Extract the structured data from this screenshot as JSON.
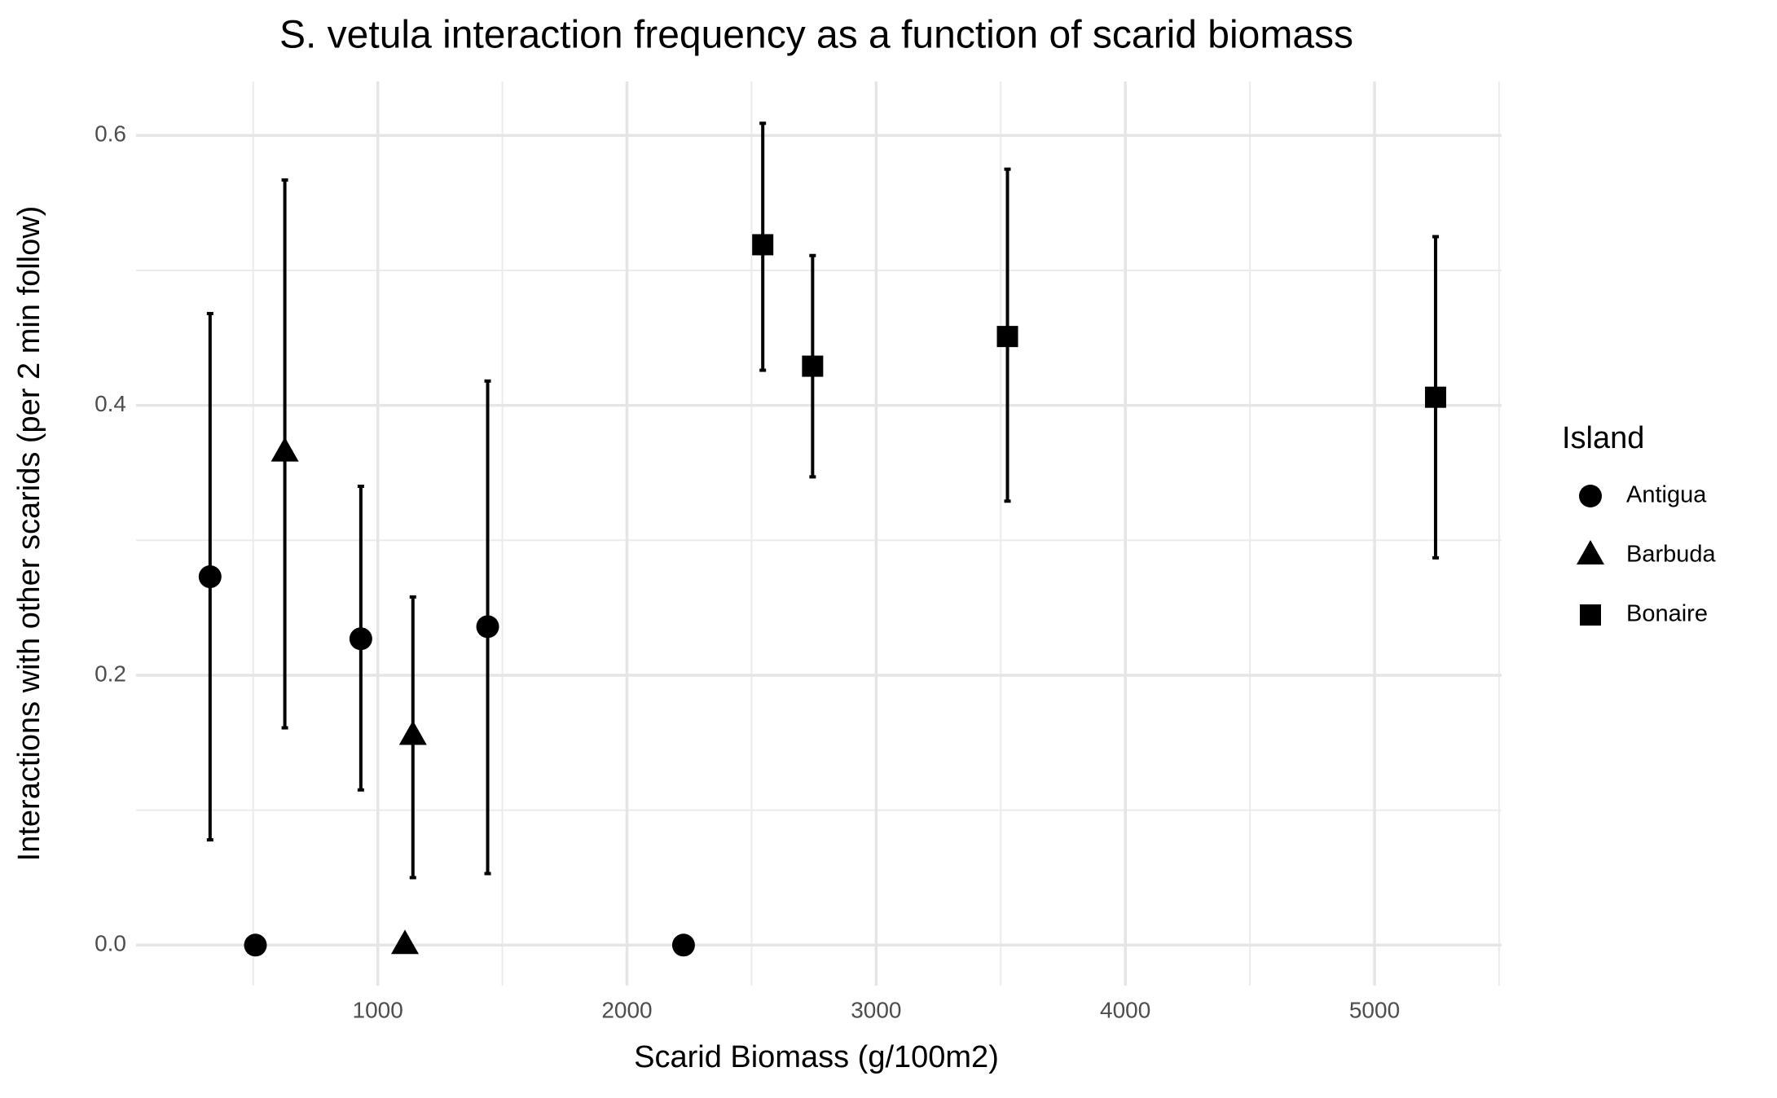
{
  "chart_data": {
    "type": "scatter",
    "title": "S. vetula interaction frequency as a function of scarid biomass",
    "x_label": "Scarid Biomass (g/100m2)",
    "y_label": "Interactions with other scarids (per 2 min follow)",
    "legend_title": "Island",
    "legend_position": "right",
    "grid": true,
    "xlim": [
      30,
      5510
    ],
    "ylim": [
      -0.03,
      0.64
    ],
    "xticks": [
      1000,
      2000,
      3000,
      4000,
      5000
    ],
    "x_minor_ticks": [
      500,
      1500,
      2500,
      3500,
      4500,
      5500
    ],
    "yticks": [
      {
        "value": 0,
        "label": "0.0"
      },
      0.2,
      0.4,
      0.6
    ],
    "y_minor_ticks": [
      0.1,
      0.3,
      0.5
    ],
    "series": [
      {
        "name": "Antigua",
        "shape": "circle",
        "color": "#000000",
        "x": [
          327,
          509,
          932,
          1441,
          2227
        ],
        "values": [
          0.273,
          0,
          0.227,
          0.236,
          0
        ],
        "ymin": [
          0.078,
          null,
          0.115,
          0.053,
          null
        ],
        "ymax": [
          0.468,
          null,
          0.34,
          0.418,
          null
        ]
      },
      {
        "name": "Barbuda",
        "shape": "triangle",
        "color": "#000000",
        "x": [
          627,
          1141,
          1109
        ],
        "values": [
          0.365,
          0.155,
          0
        ],
        "ymin": [
          0.161,
          0.05,
          null
        ],
        "ymax": [
          0.567,
          0.258,
          null
        ]
      },
      {
        "name": "Bonaire",
        "shape": "square",
        "color": "#000000",
        "x": [
          2545,
          2745,
          3527,
          5245
        ],
        "values": [
          0.519,
          0.429,
          0.451,
          0.406
        ],
        "ymin": [
          0.426,
          0.347,
          0.329,
          0.287
        ],
        "ymax": [
          0.609,
          0.511,
          0.575,
          0.525
        ]
      }
    ]
  }
}
